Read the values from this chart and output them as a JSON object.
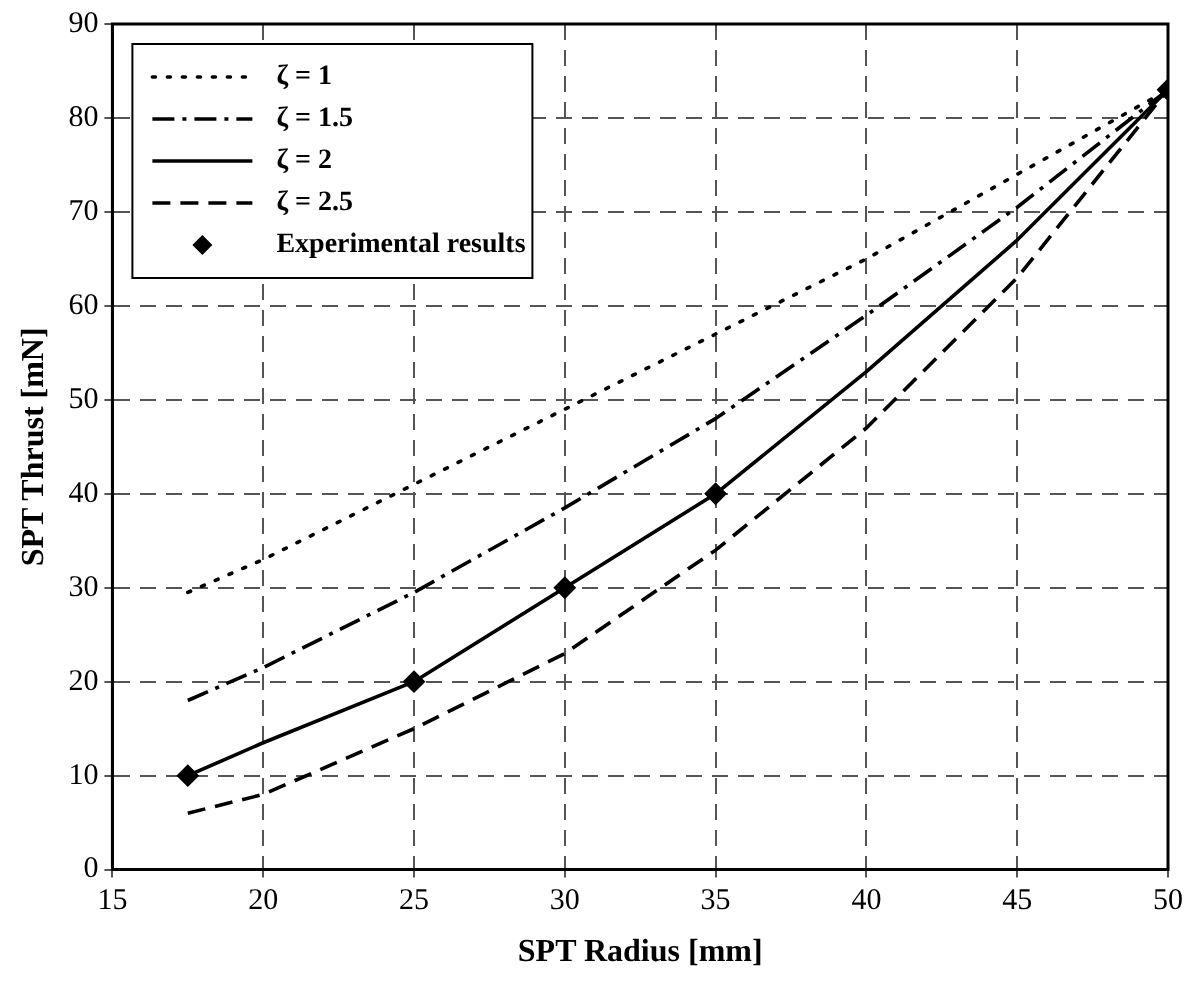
{
  "chart_data": {
    "type": "line",
    "xlabel": "SPT Radius [mm]",
    "ylabel": "SPT Thrust [mN]",
    "xlim": [
      15,
      50
    ],
    "xticks": [
      15,
      20,
      25,
      30,
      35,
      40,
      45,
      50
    ],
    "ylim": [
      0,
      90
    ],
    "yticks": [
      0,
      10,
      20,
      30,
      40,
      50,
      60,
      70,
      80,
      90
    ],
    "grid": true,
    "legend": "top left",
    "marker": "none",
    "series": [
      {
        "name": "ζ = 1",
        "color": "#000000",
        "line_style": "dotted",
        "x": [
          17.5,
          20,
          25,
          30,
          35,
          40,
          45,
          50
        ],
        "values": [
          29.5,
          33,
          41,
          49,
          57,
          65,
          74,
          83
        ]
      },
      {
        "name": "ζ = 1.5",
        "color": "#000000",
        "line_style": "dashdot",
        "x": [
          17.5,
          20,
          25,
          30,
          35,
          40,
          45,
          50
        ],
        "values": [
          18,
          21.5,
          29.5,
          38.5,
          48,
          59,
          70.5,
          83
        ]
      },
      {
        "name": "ζ = 2",
        "color": "#000000",
        "line_style": "solid",
        "x": [
          17.5,
          20,
          25,
          30,
          35,
          40,
          45,
          50
        ],
        "values": [
          10,
          13.5,
          20,
          30,
          40,
          53,
          67,
          83
        ]
      },
      {
        "name": "ζ = 2.5",
        "color": "#000000",
        "line_style": "dashed",
        "x": [
          17.5,
          20,
          25,
          30,
          35,
          40,
          45,
          50
        ],
        "values": [
          6,
          8,
          15,
          23,
          34,
          47,
          63,
          83
        ]
      },
      {
        "name": "Experimental results",
        "color": "#000000",
        "type": "scatter",
        "marker": "diamond",
        "x": [
          17.5,
          25,
          30,
          35,
          50
        ],
        "values": [
          10,
          20,
          30,
          40,
          83
        ]
      }
    ]
  }
}
